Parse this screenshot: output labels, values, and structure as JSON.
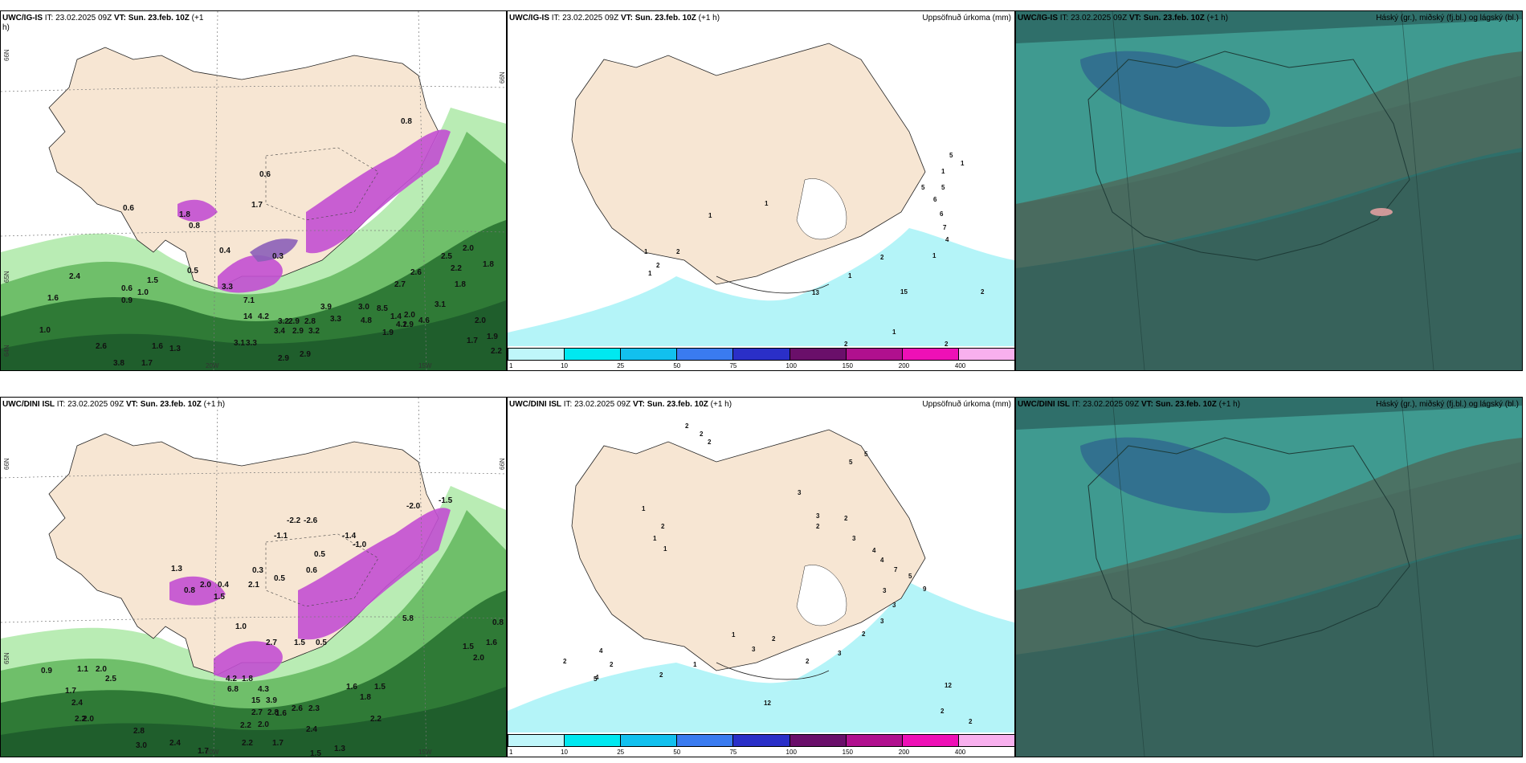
{
  "colors": {
    "land": "#f7e6d3",
    "sea_white": "#ffffff",
    "precip_light": "#b4f4f8",
    "cloud_base": "#2f6f6a",
    "cloud_high": "#3f9a90",
    "cloud_mid": "#4d6b5d",
    "green_dark": "#1f5e2c",
    "green_light": "#b9ecb4",
    "purple": "#c24fd2"
  },
  "panels": {
    "top_left": {
      "model": "UWC/IG-IS",
      "it": "IT: 23.02.2025 09Z",
      "vt": "VT: Sun. 23.feb. 10Z",
      "lead": "(+1",
      "lead_cont": "h)",
      "right_title": "",
      "axis_labels": {
        "lat_top": "66N",
        "lat_mid": "65N",
        "lat_low": "64N",
        "lon_left": "20W",
        "lon_right": "15W",
        "lat_right": "66N"
      },
      "labels": [
        "0.8",
        "0.6",
        "2.4",
        "1.6",
        "1.0",
        "0.6",
        "0.9",
        "1.0",
        "1.5",
        "0.5",
        "0.4",
        "1.7",
        "0.6",
        "0.3",
        "1.8",
        "0.8",
        "3.3",
        "7.1",
        "14",
        "4.2",
        "3.2",
        "2.9",
        "2.8",
        "3.4",
        "2.9",
        "3.2",
        "3.9",
        "3.3",
        "3.0",
        "1.9",
        "1.6",
        "1.3",
        "3.1",
        "3.3",
        "2.9",
        "2.9",
        "2.6",
        "3.8",
        "1.7",
        "1.4",
        "2.0",
        "1.9",
        "2.7",
        "2.6",
        "3.1",
        "2.0",
        "1.8",
        "2.2",
        "2.5",
        "2.0",
        "1.8",
        "1.9",
        "1.7",
        "2.2",
        "4.8",
        "4.2",
        "8.5",
        "4.6"
      ]
    },
    "top_mid": {
      "model": "UWC/IG-IS",
      "it": "IT: 23.02.2025 09Z",
      "vt": "VT: Sun. 23.feb. 10Z",
      "lead": "(+1 h)",
      "right_title": "Uppsöfnuð úrkoma (mm)",
      "labels": [
        "1",
        "1",
        "2",
        "1",
        "2",
        "1",
        "1",
        "1",
        "5",
        "5",
        "6",
        "6",
        "7",
        "5",
        "4",
        "2",
        "2",
        "3",
        "4",
        "3",
        "3",
        "3",
        "3",
        "2",
        "2",
        "2",
        "1",
        "2",
        "1",
        "15",
        "13",
        "1",
        "2",
        "1",
        "2"
      ]
    },
    "top_right": {
      "model": "UWC/IG-IS",
      "it": "IT: 23.02.2025 09Z",
      "vt": "VT: Sun. 23.feb. 10Z",
      "lead": "(+1 h)",
      "right_title": "Háský (gr.), miðský (fj.bl.) og lágský (bl.)"
    },
    "bot_left": {
      "model": "UWC/DINI ISL",
      "it": "IT: 23.02.2025 09Z",
      "vt": "VT: Sun. 23.feb. 10Z",
      "lead": "(+1 h)",
      "right_title": "",
      "axis_labels": {
        "lat_top": "66N",
        "lat_mid": "65N",
        "lon_left": "20W",
        "lon_right": "15W",
        "lat_right": "66N"
      },
      "labels": [
        "-2.0",
        "-1.5",
        "-2.2",
        "-2.6",
        "-1.1",
        "-1.4",
        "-1.0",
        "0.5",
        "1.3",
        "2.0",
        "0.4",
        "2.1",
        "0.6",
        "0.5",
        "0.3",
        "1.5",
        "0.8",
        "1.0",
        "2.7",
        "1.5",
        "0.5",
        "4.2",
        "1.8",
        "6.8",
        "4.3",
        "15",
        "3.9",
        "2.7",
        "2.8",
        "2.6",
        "2.3",
        "2.2",
        "2.0",
        "2.2",
        "1.7",
        "2.4",
        "1.6",
        "1.6",
        "1.8",
        "1.5",
        "2.2",
        "1.3",
        "1.5",
        "0.9",
        "1.1",
        "1.7",
        "2.0",
        "2.5",
        "2.4",
        "2.2",
        "2.0",
        "2.8",
        "3.0",
        "2.4",
        "1.7",
        "0.8",
        "1.6",
        "2.0",
        "1.5",
        "5.8"
      ]
    },
    "bot_mid": {
      "model": "UWC/DINI ISL",
      "it": "IT: 23.02.2025 09Z",
      "vt": "VT: Sun. 23.feb. 10Z",
      "lead": "(+1 h)",
      "right_title": "Uppsöfnuð úrkoma (mm)",
      "labels": [
        "2",
        "2",
        "2",
        "1",
        "2",
        "1",
        "1",
        "3",
        "3",
        "2",
        "2",
        "3",
        "5",
        "5",
        "4",
        "4",
        "7",
        "5",
        "9",
        "3",
        "3",
        "3",
        "2",
        "3",
        "2",
        "2",
        "3",
        "1",
        "1",
        "2",
        "4",
        "2",
        "5",
        "4",
        "2",
        "12",
        "2",
        "2",
        "12"
      ]
    },
    "bot_right": {
      "model": "UWC/DINI ISL",
      "it": "IT: 23.02.2025 09Z",
      "vt": "VT: Sun. 23.feb. 10Z",
      "lead": "(+1 h)",
      "right_title": "Háský (gr.), miðský (fj.bl.) og lágský (bl.)"
    }
  },
  "colorbar": {
    "ticks": [
      "1",
      "10",
      "25",
      "50",
      "75",
      "100",
      "150",
      "200",
      "400"
    ],
    "colors": [
      "#bff6fa",
      "#00e8f0",
      "#12c0ee",
      "#3a7bf0",
      "#2a2fc8",
      "#6a0f6a",
      "#b0108e",
      "#ee10b6",
      "#f8b0ee"
    ]
  }
}
